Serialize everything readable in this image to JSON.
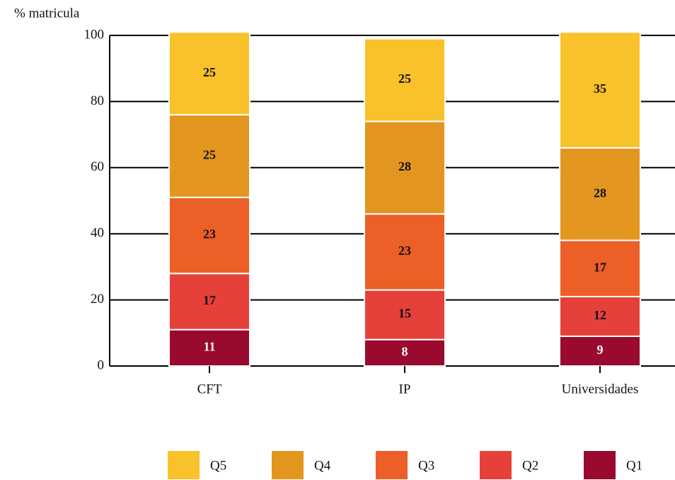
{
  "chart_data": {
    "type": "stacked_bar",
    "y_label": "% matricula",
    "categories": [
      "CFT",
      "IP",
      "Universidades"
    ],
    "series": [
      {
        "name": "Q5",
        "color": "#f9c12a",
        "values": [
          25,
          25,
          35
        ]
      },
      {
        "name": "Q4",
        "color": "#e3961f",
        "values": [
          25,
          28,
          28
        ]
      },
      {
        "name": "Q3",
        "color": "#ec5f26",
        "values": [
          23,
          23,
          17
        ]
      },
      {
        "name": "Q2",
        "color": "#e6403a",
        "values": [
          17,
          15,
          12
        ]
      },
      {
        "name": "Q1",
        "color": "#990a2e",
        "values": [
          11,
          8,
          9
        ]
      }
    ],
    "ylim": [
      0,
      100
    ],
    "yticks": [
      0,
      20,
      40,
      60,
      80,
      100
    ],
    "grid": true
  }
}
